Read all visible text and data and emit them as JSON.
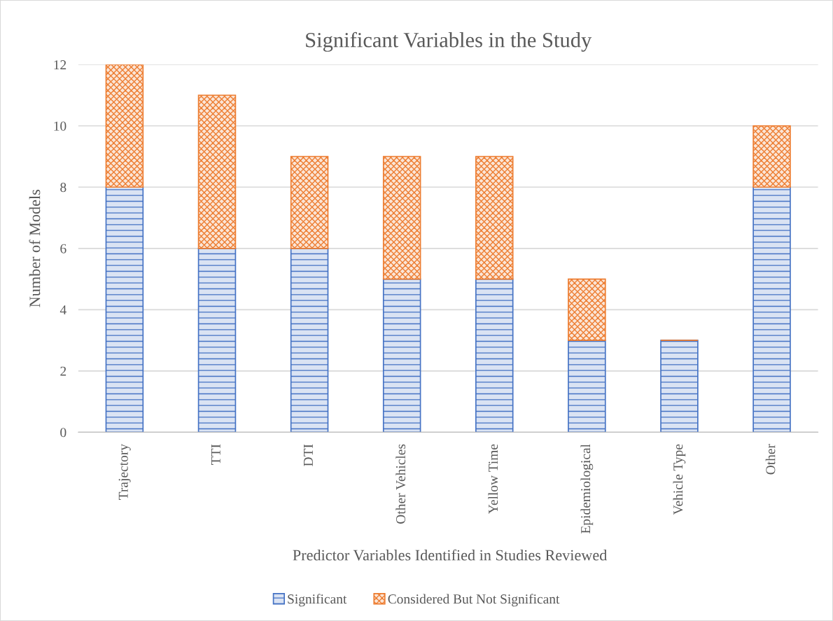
{
  "chart_data": {
    "type": "bar",
    "stacked": true,
    "title": "Significant Variables in the Study",
    "xlabel": "Predictor Variables Identified in Studies Reviewed",
    "ylabel": "Number of Models",
    "categories": [
      "Trajectory",
      "TTI",
      "DTI",
      "Other Vehicles",
      "Yellow Time",
      "Epidemiological",
      "Vehicle Type",
      "Other"
    ],
    "series": [
      {
        "name": "Significant",
        "color": "#4472c4",
        "values": [
          8,
          6,
          6,
          5,
          5,
          3,
          3,
          8
        ]
      },
      {
        "name": "Considered But Not Significant",
        "color": "#ed7d31",
        "values": [
          4,
          5,
          3,
          4,
          4,
          2,
          0,
          2
        ]
      }
    ],
    "ylim": [
      0,
      12
    ],
    "yticks": [
      0,
      2,
      4,
      6,
      8,
      10,
      12
    ],
    "grid": "y",
    "legend": "bottom"
  }
}
